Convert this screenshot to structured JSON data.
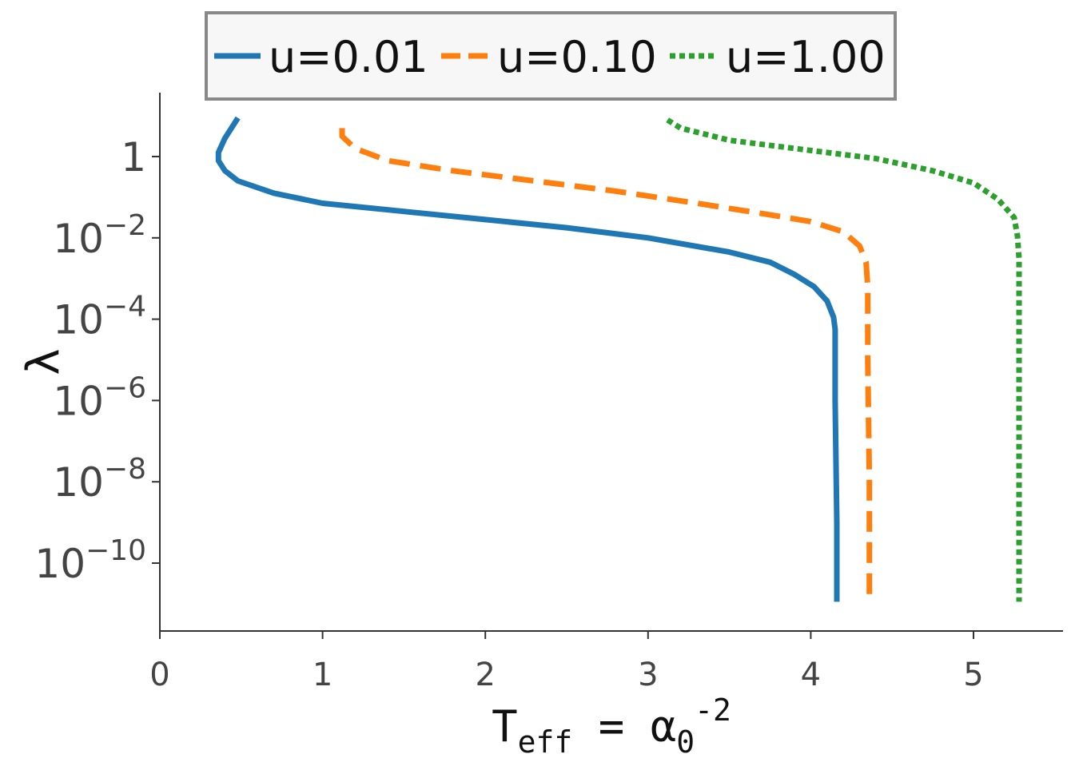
{
  "chart_data": {
    "type": "line",
    "xlabel": {
      "base": "T",
      "sub": "eff",
      "mid": " = α",
      "sub2": "0",
      "sup": "-2"
    },
    "ylabel": "λ",
    "xlim": [
      0,
      5.55
    ],
    "ylim_log10": [
      -11.7,
      1.6
    ],
    "y_scale": "log",
    "x_ticks": [
      "0",
      "1",
      "2",
      "3",
      "4",
      "5"
    ],
    "x_tick_values": [
      0,
      1,
      2,
      3,
      4,
      5
    ],
    "y_ticks": [
      {
        "value": 0,
        "base": "1",
        "exp": ""
      },
      {
        "value": -2,
        "base": "10",
        "exp": "−2"
      },
      {
        "value": -4,
        "base": "10",
        "exp": "−4"
      },
      {
        "value": -6,
        "base": "10",
        "exp": "−6"
      },
      {
        "value": -8,
        "base": "10",
        "exp": "−8"
      },
      {
        "value": -10,
        "base": "10",
        "exp": "−10"
      }
    ],
    "legend_position": "top-center",
    "series": [
      {
        "name": "u=0.01",
        "color": "#1f77b4",
        "style": "solid",
        "points": [
          [
            0.48,
            0.95
          ],
          [
            0.4,
            0.45
          ],
          [
            0.36,
            0.1
          ],
          [
            0.36,
            -0.1
          ],
          [
            0.4,
            -0.35
          ],
          [
            0.48,
            -0.6
          ],
          [
            0.7,
            -0.9
          ],
          [
            1.0,
            -1.15
          ],
          [
            1.5,
            -1.35
          ],
          [
            2.0,
            -1.55
          ],
          [
            2.5,
            -1.75
          ],
          [
            3.0,
            -2.0
          ],
          [
            3.5,
            -2.35
          ],
          [
            3.75,
            -2.6
          ],
          [
            3.9,
            -2.9
          ],
          [
            4.02,
            -3.2
          ],
          [
            4.1,
            -3.55
          ],
          [
            4.14,
            -3.95
          ],
          [
            4.15,
            -4.25
          ],
          [
            4.15,
            -6
          ],
          [
            4.16,
            -9
          ],
          [
            4.16,
            -10.95
          ]
        ]
      },
      {
        "name": "u=0.10",
        "color": "#ff7f0e",
        "style": "dashed",
        "points": [
          [
            1.12,
            0.7
          ],
          [
            1.12,
            0.5
          ],
          [
            1.2,
            0.2
          ],
          [
            1.4,
            -0.1
          ],
          [
            1.8,
            -0.35
          ],
          [
            2.3,
            -0.6
          ],
          [
            2.8,
            -0.85
          ],
          [
            3.3,
            -1.15
          ],
          [
            3.7,
            -1.4
          ],
          [
            4.0,
            -1.6
          ],
          [
            4.2,
            -1.85
          ],
          [
            4.3,
            -2.2
          ],
          [
            4.34,
            -2.6
          ],
          [
            4.35,
            -3.2
          ],
          [
            4.35,
            -5
          ],
          [
            4.36,
            -8
          ],
          [
            4.36,
            -10.95
          ]
        ]
      },
      {
        "name": "u=1.00",
        "color": "#2ca02c",
        "style": "dotted",
        "points": [
          [
            3.12,
            0.9
          ],
          [
            3.2,
            0.7
          ],
          [
            3.5,
            0.4
          ],
          [
            4.0,
            0.15
          ],
          [
            4.4,
            -0.05
          ],
          [
            4.75,
            -0.35
          ],
          [
            5.0,
            -0.65
          ],
          [
            5.15,
            -1.05
          ],
          [
            5.25,
            -1.5
          ],
          [
            5.27,
            -1.95
          ],
          [
            5.28,
            -2.5
          ],
          [
            5.28,
            -5
          ],
          [
            5.28,
            -8
          ],
          [
            5.28,
            -10.95
          ]
        ]
      }
    ]
  }
}
